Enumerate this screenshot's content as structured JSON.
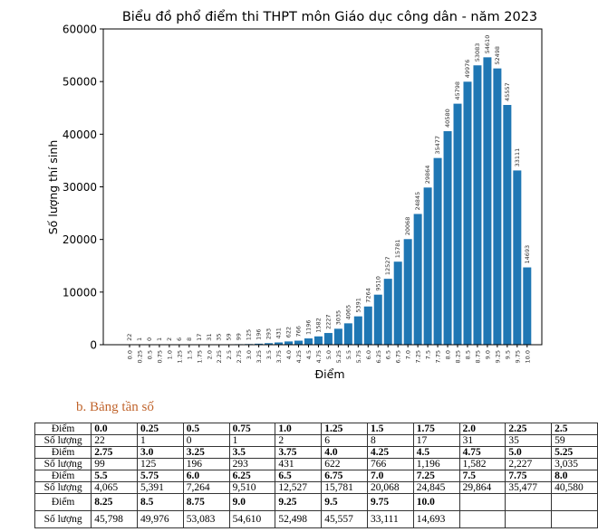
{
  "chart_data": {
    "type": "bar",
    "title": "Biểu đồ phổ điểm thi THPT môn Giáo dục công dân - năm 2023",
    "xlabel": "Điểm",
    "ylabel": "Số lượng thí sinh",
    "ylim": [
      0,
      60000
    ],
    "yticks": [
      "0",
      "10000",
      "20000",
      "30000",
      "40000",
      "50000",
      "60000"
    ],
    "bar_color": "#1f77b4",
    "categories": [
      "0.0",
      "0.25",
      "0.5",
      "0.75",
      "1.0",
      "1.25",
      "1.5",
      "1.75",
      "2.0",
      "2.25",
      "2.5",
      "2.75",
      "3.0",
      "3.25",
      "3.5",
      "3.75",
      "4.0",
      "4.25",
      "4.5",
      "4.75",
      "5.0",
      "5.25",
      "5.5",
      "5.75",
      "6.0",
      "6.25",
      "6.5",
      "6.75",
      "7.0",
      "7.25",
      "7.5",
      "7.75",
      "8.0",
      "8.25",
      "8.5",
      "8.75",
      "9.0",
      "9.25",
      "9.5",
      "9.75",
      "10.0"
    ],
    "values": [
      22,
      1,
      0,
      1,
      2,
      6,
      8,
      17,
      31,
      35,
      59,
      99,
      125,
      196,
      293,
      431,
      622,
      766,
      1196,
      1582,
      2227,
      3035,
      4065,
      5391,
      7264,
      9510,
      12527,
      15781,
      20068,
      24845,
      29864,
      35477,
      40580,
      45798,
      49976,
      53083,
      54610,
      52498,
      45557,
      33111,
      14693
    ]
  },
  "table": {
    "heading": "b.   Bảng tần số",
    "label_score": "Điểm",
    "label_count": "Số lượng",
    "rows": [
      {
        "scores": [
          "0.0",
          "0.25",
          "0.5",
          "0.75",
          "1.0",
          "1.25",
          "1.5",
          "1.75",
          "2.0",
          "2.25",
          "2.5"
        ],
        "counts": [
          "22",
          "1",
          "0",
          "1",
          "2",
          "6",
          "8",
          "17",
          "31",
          "35",
          "59"
        ]
      },
      {
        "scores": [
          "2.75",
          "3.0",
          "3.25",
          "3.5",
          "3.75",
          "4.0",
          "4.25",
          "4.5",
          "4.75",
          "5.0",
          "5.25"
        ],
        "counts": [
          "99",
          "125",
          "196",
          "293",
          "431",
          "622",
          "766",
          "1,196",
          "1,582",
          "2,227",
          "3,035"
        ]
      },
      {
        "scores": [
          "5.5",
          "5.75",
          "6.0",
          "6.25",
          "6.5",
          "6.75",
          "7.0",
          "7.25",
          "7.5",
          "7.75",
          "8.0"
        ],
        "counts": [
          "4,065",
          "5,391",
          "7,264",
          "9,510",
          "12,527",
          "15,781",
          "20,068",
          "24,845",
          "29,864",
          "35,477",
          "40,580"
        ]
      },
      {
        "scores": [
          "8.25",
          "8.5",
          "8.75",
          "9.0",
          "9.25",
          "9.5",
          "9.75",
          "10.0",
          "",
          "",
          ""
        ],
        "counts": [
          "45,798",
          "49,976",
          "53,083",
          "54,610",
          "52,498",
          "45,557",
          "33,111",
          "14,693",
          "",
          "",
          ""
        ]
      }
    ]
  }
}
